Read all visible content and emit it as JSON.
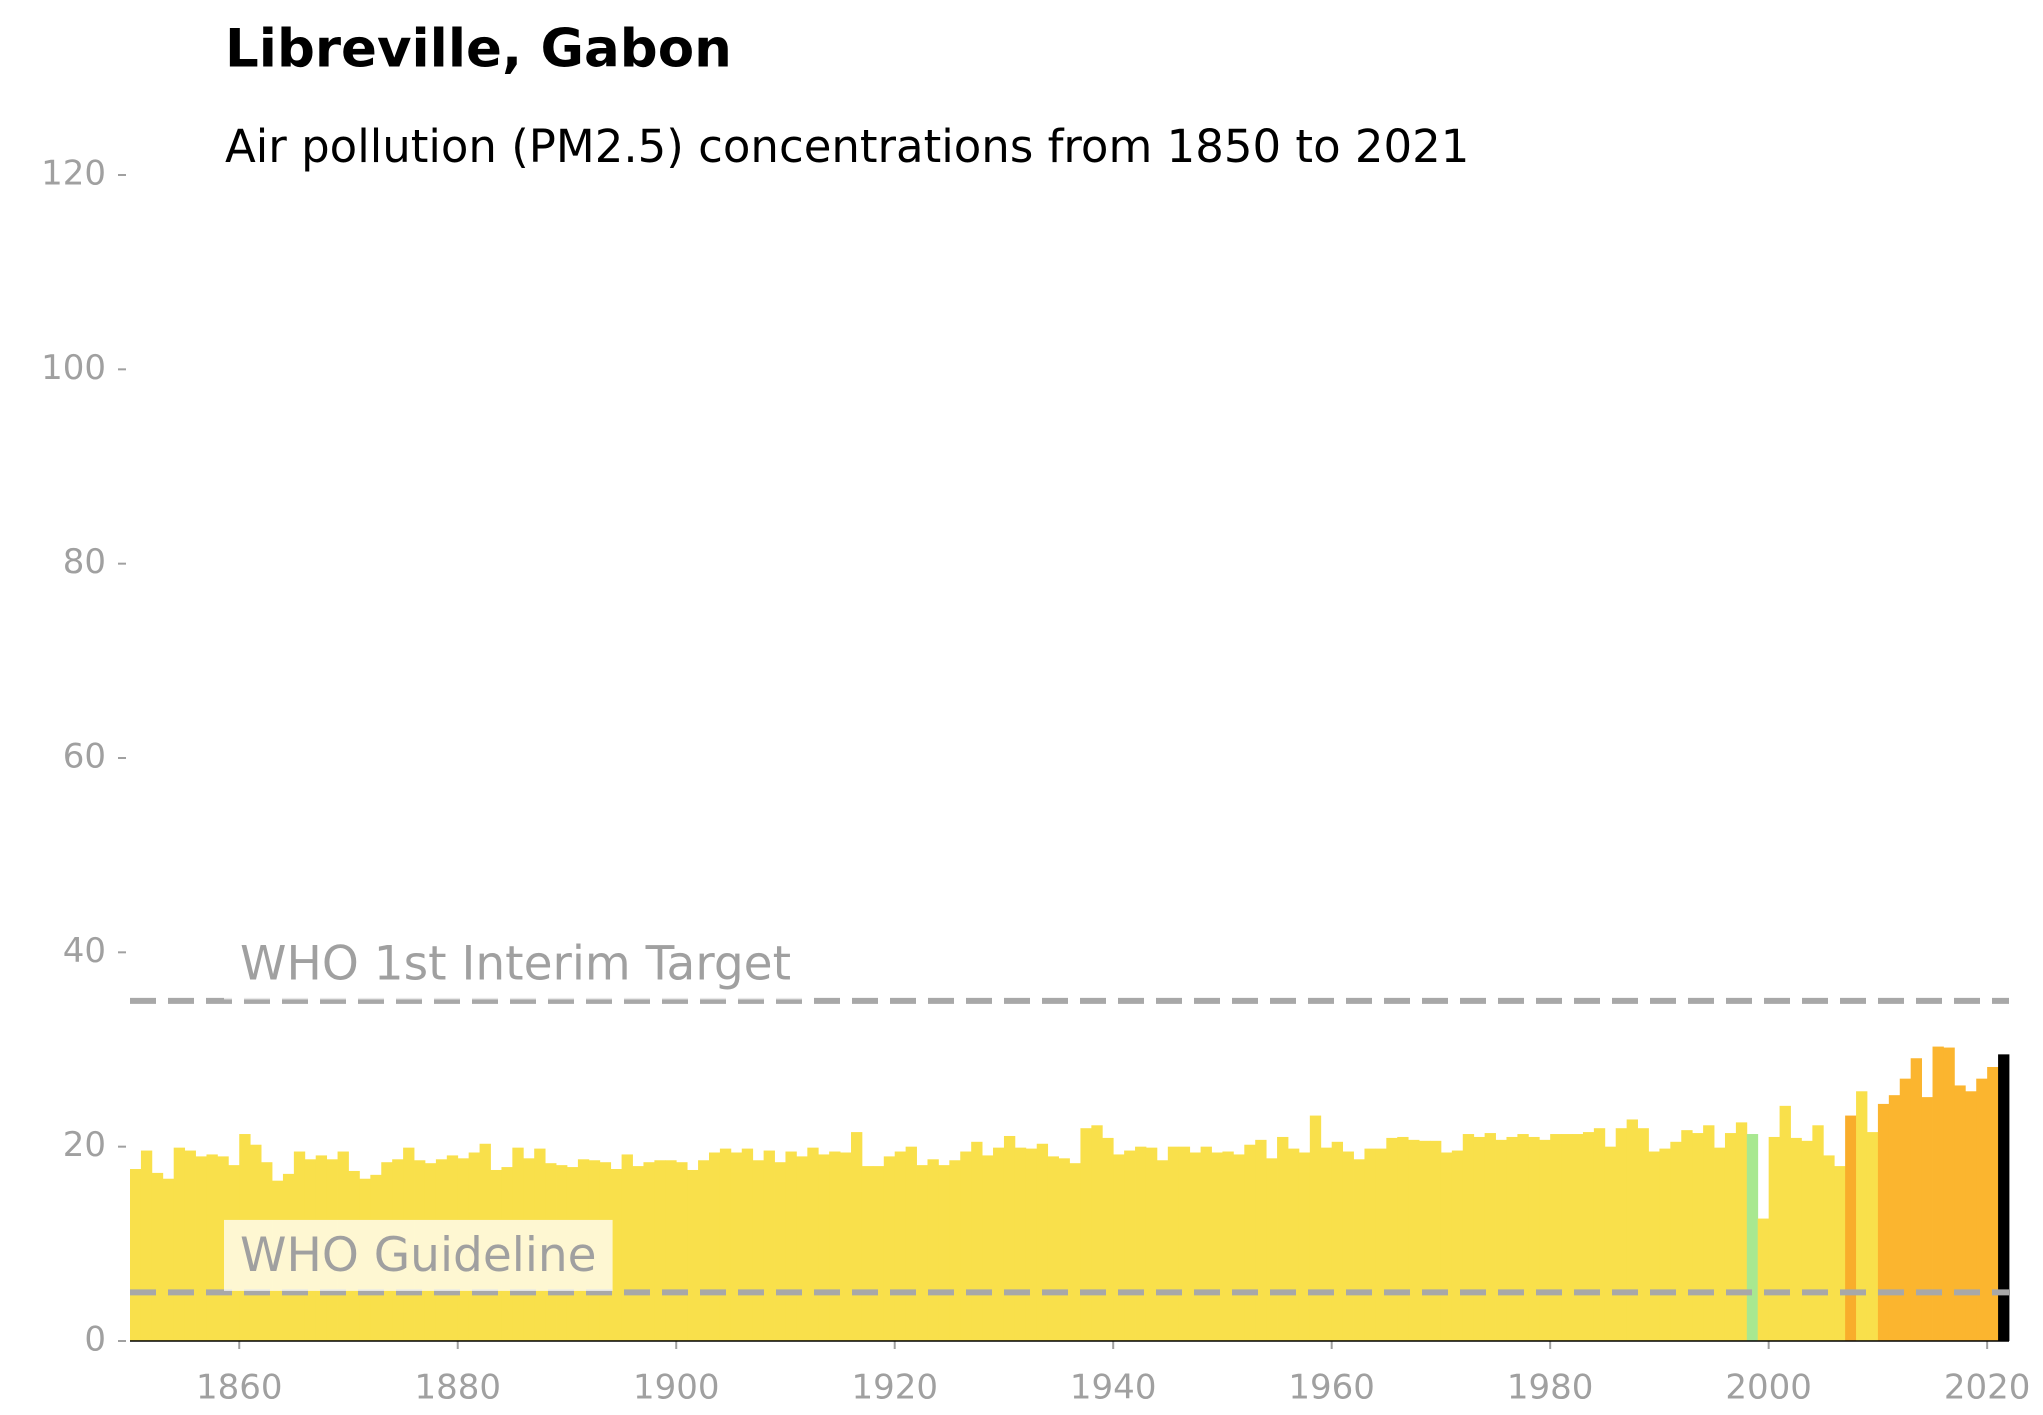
{
  "chart_data": {
    "type": "bar",
    "title": "Libreville, Gabon",
    "subtitle": "Air pollution (PM2.5) concentrations from 1850 to 2021",
    "x": [
      1850,
      1851,
      1852,
      1853,
      1854,
      1855,
      1856,
      1857,
      1858,
      1859,
      1860,
      1861,
      1862,
      1863,
      1864,
      1865,
      1866,
      1867,
      1868,
      1869,
      1870,
      1871,
      1872,
      1873,
      1874,
      1875,
      1876,
      1877,
      1878,
      1879,
      1880,
      1881,
      1882,
      1883,
      1884,
      1885,
      1886,
      1887,
      1888,
      1889,
      1890,
      1891,
      1892,
      1893,
      1894,
      1895,
      1896,
      1897,
      1898,
      1899,
      1900,
      1901,
      1902,
      1903,
      1904,
      1905,
      1906,
      1907,
      1908,
      1909,
      1910,
      1911,
      1912,
      1913,
      1914,
      1915,
      1916,
      1917,
      1918,
      1919,
      1920,
      1921,
      1922,
      1923,
      1924,
      1925,
      1926,
      1927,
      1928,
      1929,
      1930,
      1931,
      1932,
      1933,
      1934,
      1935,
      1936,
      1937,
      1938,
      1939,
      1940,
      1941,
      1942,
      1943,
      1944,
      1945,
      1946,
      1947,
      1948,
      1949,
      1950,
      1951,
      1952,
      1953,
      1954,
      1955,
      1956,
      1957,
      1958,
      1959,
      1960,
      1961,
      1962,
      1963,
      1964,
      1965,
      1966,
      1967,
      1968,
      1969,
      1970,
      1971,
      1972,
      1973,
      1974,
      1975,
      1976,
      1977,
      1978,
      1979,
      1980,
      1981,
      1982,
      1983,
      1984,
      1985,
      1986,
      1987,
      1988,
      1989,
      1990,
      1991,
      1992,
      1993,
      1994,
      1995,
      1996,
      1997,
      1998,
      1999,
      2000,
      2001,
      2002,
      2003,
      2004,
      2005,
      2006,
      2007,
      2008,
      2009,
      2010,
      2011,
      2012,
      2013,
      2014,
      2015,
      2016,
      2017,
      2018,
      2019,
      2020,
      2021
    ],
    "values": [
      17.7,
      19.6,
      17.3,
      16.7,
      19.9,
      19.6,
      19.0,
      19.2,
      19.0,
      18.1,
      21.3,
      20.2,
      18.4,
      16.5,
      17.2,
      19.5,
      18.7,
      19.1,
      18.7,
      19.5,
      17.5,
      16.7,
      17.1,
      18.4,
      18.7,
      19.9,
      18.6,
      18.3,
      18.7,
      19.1,
      18.8,
      19.4,
      20.3,
      17.6,
      17.9,
      19.9,
      18.8,
      19.8,
      18.3,
      18.1,
      17.9,
      18.7,
      18.6,
      18.4,
      17.7,
      19.2,
      18.0,
      18.4,
      18.6,
      18.6,
      18.4,
      17.6,
      18.6,
      19.4,
      19.8,
      19.4,
      19.8,
      18.6,
      19.6,
      18.4,
      19.5,
      19.0,
      19.9,
      19.2,
      19.5,
      19.4,
      21.5,
      18.0,
      18.0,
      19.0,
      19.5,
      20.0,
      18.1,
      18.7,
      18.1,
      18.6,
      19.5,
      20.5,
      19.1,
      19.9,
      21.1,
      19.9,
      19.8,
      20.3,
      19.0,
      18.8,
      18.3,
      21.9,
      22.2,
      20.9,
      19.2,
      19.6,
      20.0,
      19.9,
      18.6,
      20.0,
      20.0,
      19.4,
      20.0,
      19.4,
      19.5,
      19.2,
      20.2,
      20.7,
      18.8,
      21.0,
      19.8,
      19.4,
      23.2,
      19.9,
      20.5,
      19.5,
      18.7,
      19.8,
      19.8,
      20.9,
      21.0,
      20.7,
      20.6,
      20.6,
      19.4,
      19.6,
      21.3,
      21.0,
      21.4,
      20.7,
      21.0,
      21.3,
      21.0,
      20.7,
      21.3,
      21.3,
      21.3,
      21.5,
      21.9,
      20.0,
      21.9,
      22.8,
      21.9,
      19.5,
      19.8,
      20.5,
      21.7,
      21.4,
      22.2,
      19.9,
      21.4,
      22.5,
      21.3,
      12.6,
      21.0,
      24.2,
      20.9,
      20.6,
      22.2,
      19.1,
      18.0,
      23.2,
      25.7,
      21.5,
      24.4,
      25.3,
      27.0,
      29.1,
      25.1,
      30.3,
      30.2,
      26.3,
      25.7,
      27.0,
      28.2,
      29.5
    ],
    "colors": [
      "#f9e04b",
      "#f9e04b",
      "#f9e04b",
      "#f9e04b",
      "#f9e04b",
      "#f9e04b",
      "#f9e04b",
      "#f9e04b",
      "#f9e04b",
      "#f9e04b",
      "#f9e04b",
      "#f9e04b",
      "#f9e04b",
      "#f9e04b",
      "#f9e04b",
      "#f9e04b",
      "#f9e04b",
      "#f9e04b",
      "#f9e04b",
      "#f9e04b",
      "#f9e04b",
      "#f9e04b",
      "#f9e04b",
      "#f9e04b",
      "#f9e04b",
      "#f9e04b",
      "#f9e04b",
      "#f9e04b",
      "#f9e04b",
      "#f9e04b",
      "#f9e04b",
      "#f9e04b",
      "#f9e04b",
      "#f9e04b",
      "#f9e04b",
      "#f9e04b",
      "#f9e04b",
      "#f9e04b",
      "#f9e04b",
      "#f9e04b",
      "#f9e04b",
      "#f9e04b",
      "#f9e04b",
      "#f9e04b",
      "#f9e04b",
      "#f9e04b",
      "#f9e04b",
      "#f9e04b",
      "#f9e04b",
      "#f9e04b",
      "#f9e04b",
      "#f9e04b",
      "#f9e04b",
      "#f9e04b",
      "#f9e04b",
      "#f9e04b",
      "#f9e04b",
      "#f9e04b",
      "#f9e04b",
      "#f9e04b",
      "#f9e04b",
      "#f9e04b",
      "#f9e04b",
      "#f9e04b",
      "#f9e04b",
      "#f9e04b",
      "#f9e04b",
      "#f9e04b",
      "#f9e04b",
      "#f9e04b",
      "#f9e04b",
      "#f9e04b",
      "#f9e04b",
      "#f9e04b",
      "#f9e04b",
      "#f9e04b",
      "#f9e04b",
      "#f9e04b",
      "#f9e04b",
      "#f9e04b",
      "#f9e04b",
      "#f9e04b",
      "#f9e04b",
      "#f9e04b",
      "#f9e04b",
      "#f9e04b",
      "#f9e04b",
      "#f9e04b",
      "#f9e04b",
      "#f9e04b",
      "#f9e04b",
      "#f9e04b",
      "#f9e04b",
      "#f9e04b",
      "#f9e04b",
      "#f9e04b",
      "#f9e04b",
      "#f9e04b",
      "#f9e04b",
      "#f9e04b",
      "#f9e04b",
      "#f9e04b",
      "#f9e04b",
      "#f9e04b",
      "#f9e04b",
      "#f9e04b",
      "#f9e04b",
      "#f9e04b",
      "#f9e04b",
      "#f9e04b",
      "#f9e04b",
      "#f9e04b",
      "#f9e04b",
      "#f9e04b",
      "#f9e04b",
      "#f9e04b",
      "#f9e04b",
      "#f9e04b",
      "#f9e04b",
      "#f9e04b",
      "#f9e04b",
      "#f9e04b",
      "#f9e04b",
      "#f9e04b",
      "#f9e04b",
      "#f9e04b",
      "#f9e04b",
      "#f9e04b",
      "#f9e04b",
      "#f9e04b",
      "#f9e04b",
      "#f9e04b",
      "#f9e04b",
      "#f9e04b",
      "#f9e04b",
      "#f9e04b",
      "#f9e04b",
      "#f9e04b",
      "#f9e04b",
      "#f9e04b",
      "#f9e04b",
      "#f9e04b",
      "#f9e04b",
      "#f9e04b",
      "#f9e04b",
      "#f9e04b",
      "#f9e04b",
      "#f9e04b",
      "#a8e890",
      "#f9e04b",
      "#f9e04b",
      "#f9e04b",
      "#f9e04b",
      "#f9e04b",
      "#f9e04b",
      "#f9e04b",
      "#f9e04b",
      "#f9ad2b",
      "#f9e04b",
      "#f9e04b",
      "#fbb52f",
      "#fbb52f",
      "#fbb52f",
      "#fbb52f",
      "#fbb52f",
      "#fbb52f",
      "#fbb52f",
      "#fbb52f",
      "#fbb52f",
      "#fbb52f",
      "#fbb52f"
    ],
    "reference_lines": [
      {
        "label": "WHO 1st Interim Target",
        "value": 35
      },
      {
        "label": "WHO Guideline",
        "value": 5
      }
    ],
    "xlim": [
      1850,
      2022
    ],
    "xticks": [
      1860,
      1880,
      1900,
      1920,
      1940,
      1960,
      1980,
      2000,
      2020
    ],
    "ylim": [
      0,
      120
    ],
    "yticks": [
      0,
      20,
      40,
      60,
      80,
      100,
      120
    ]
  }
}
